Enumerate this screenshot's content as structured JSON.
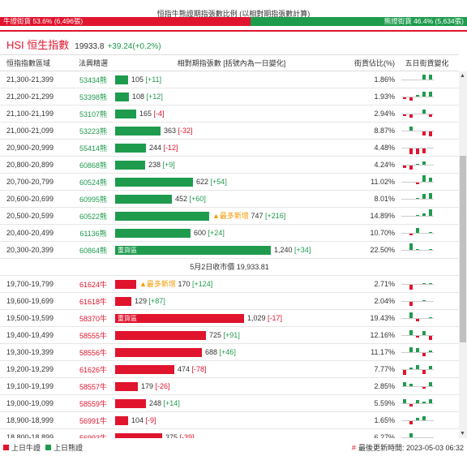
{
  "header": {
    "title": "恒指牛熊證期指張數比例 (以相對期指張數計算)",
    "bull_label": "牛證街貨 53.6% (6,496張)",
    "bear_label": "熊證街貨 46.4% (5,634張)",
    "bull_ratio": 53.6
  },
  "hsi": {
    "title": "HSI 恒生指數",
    "value": "19933.8",
    "change": "+39.24(+0.2%)"
  },
  "columns": {
    "range": "恒指指數區域",
    "code": "法興精選",
    "bar": "相對期指張數 [括號內為一日變化]",
    "pct": "街貨佔比(%)",
    "five": "五日街貨變化"
  },
  "close_line": "5月2日收市價 19,933.81",
  "max_contracts": 1240,
  "rows": [
    {
      "range": "21,300-21,399",
      "code": "53434熊",
      "side": "bear",
      "value": 105,
      "value_text": "105",
      "change": "[+11]",
      "tag": "",
      "pct": "1.86%",
      "five": [
        0,
        0,
        0,
        6,
        6
      ]
    },
    {
      "range": "21,200-21,299",
      "code": "53398熊",
      "side": "bear",
      "value": 108,
      "value_text": "108",
      "change": "[+12]",
      "tag": "",
      "pct": "1.93%",
      "five": [
        -2,
        -4,
        2,
        6,
        6
      ]
    },
    {
      "range": "21,100-21,199",
      "code": "53107熊",
      "side": "bear",
      "value": 165,
      "value_text": "165",
      "change": "[-4]",
      "tag": "",
      "pct": "2.94%",
      "five": [
        -2,
        -4,
        0,
        5,
        -3
      ]
    },
    {
      "range": "21,000-21,099",
      "code": "53223熊",
      "side": "bear",
      "value": 363,
      "value_text": "363",
      "change": "[-32]",
      "tag": "",
      "pct": "8.87%",
      "five": [
        0,
        5,
        0,
        -5,
        -6
      ]
    },
    {
      "range": "20,900-20,999",
      "code": "55414熊",
      "side": "bear",
      "value": 244,
      "value_text": "244",
      "change": "[-12]",
      "tag": "",
      "pct": "4.48%",
      "five": [
        0,
        -7,
        -7,
        -6,
        0
      ]
    },
    {
      "range": "20,800-20,899",
      "code": "60868熊",
      "side": "bear",
      "value": 238,
      "value_text": "238",
      "change": "[+9]",
      "tag": "",
      "pct": "4.24%",
      "five": [
        -3,
        -5,
        1,
        4,
        0
      ]
    },
    {
      "range": "20,700-20,799",
      "code": "60524熊",
      "side": "bear",
      "value": 622,
      "value_text": "622",
      "change": "[+54]",
      "tag": "",
      "pct": "11.02%",
      "five": [
        0,
        0,
        -2,
        8,
        5
      ]
    },
    {
      "range": "20,600-20,699",
      "code": "60995熊",
      "side": "bear",
      "value": 452,
      "value_text": "452",
      "change": "[+60]",
      "tag": "",
      "pct": "8.01%",
      "five": [
        0,
        0,
        1,
        6,
        7
      ]
    },
    {
      "range": "20,500-20,599",
      "code": "60522熊",
      "side": "bear",
      "value": 747,
      "value_text": "747",
      "change": "[+216]",
      "tag": "▲最多新增",
      "pct": "14.89%",
      "five": [
        0,
        0,
        1,
        3,
        8
      ]
    },
    {
      "range": "20,400-20,499",
      "code": "61136熊",
      "side": "bear",
      "value": 600,
      "value_text": "600",
      "change": "[+24]",
      "tag": "",
      "pct": "10.70%",
      "five": [
        0,
        -2,
        6,
        0,
        1
      ]
    },
    {
      "range": "20,300-20,399",
      "code": "60864熊",
      "side": "bear",
      "value": 1240,
      "value_text": "1,240",
      "change": "[+34]",
      "tag": "重貨區",
      "pct": "22.50%",
      "five": [
        0,
        8,
        1,
        0,
        1
      ]
    },
    {
      "range": "19,700-19,799",
      "code": "61624牛",
      "side": "bull",
      "value": 170,
      "value_text": "170",
      "change": "[+124]",
      "tag": "▲最多新增",
      "pct": "2.71%",
      "five": [
        0,
        -6,
        0,
        1,
        1
      ]
    },
    {
      "range": "19,600-19,699",
      "code": "61618牛",
      "side": "bull",
      "value": 129,
      "value_text": "129",
      "change": "[+87]",
      "tag": "",
      "pct": "2.04%",
      "five": [
        0,
        -5,
        0,
        1,
        0
      ]
    },
    {
      "range": "19,500-19,599",
      "code": "58370牛",
      "side": "bull",
      "value": 1029,
      "value_text": "1,029",
      "change": "[-17]",
      "tag": "重貨區",
      "pct": "19.43%",
      "five": [
        0,
        7,
        -3,
        0,
        1
      ]
    },
    {
      "range": "19,400-19,499",
      "code": "58555牛",
      "side": "bull",
      "value": 725,
      "value_text": "725",
      "change": "[+91]",
      "tag": "",
      "pct": "12.16%",
      "five": [
        0,
        6,
        -2,
        5,
        -5
      ]
    },
    {
      "range": "19,300-19,399",
      "code": "58556牛",
      "side": "bull",
      "value": 688,
      "value_text": "688",
      "change": "[+46]",
      "tag": "",
      "pct": "11.17%",
      "five": [
        0,
        6,
        5,
        -4,
        2
      ]
    },
    {
      "range": "19,200-19,299",
      "code": "61626牛",
      "side": "bull",
      "value": 474,
      "value_text": "474",
      "change": "[-78]",
      "tag": "",
      "pct": "7.77%",
      "five": [
        -6,
        2,
        5,
        -5,
        4
      ]
    },
    {
      "range": "19,100-19,199",
      "code": "58557牛",
      "side": "bull",
      "value": 179,
      "value_text": "179",
      "change": "[-26]",
      "tag": "",
      "pct": "2.85%",
      "five": [
        5,
        3,
        0,
        -2,
        5
      ]
    },
    {
      "range": "19,000-19,099",
      "code": "58559牛",
      "side": "bull",
      "value": 248,
      "value_text": "248",
      "change": "[+14]",
      "tag": "",
      "pct": "5.59%",
      "five": [
        5,
        -3,
        4,
        2,
        5
      ]
    },
    {
      "range": "18,900-18,999",
      "code": "56991牛",
      "side": "bull",
      "value": 104,
      "value_text": "104",
      "change": "[-9]",
      "tag": "",
      "pct": "1.65%",
      "five": [
        0,
        -4,
        3,
        5,
        0
      ]
    },
    {
      "range": "18,800-18,899",
      "code": "56993牛",
      "side": "bull",
      "value": 375,
      "value_text": "375",
      "change": "[-39]",
      "tag": "",
      "pct": "6.27%",
      "five": [
        0,
        5,
        0,
        -4,
        0
      ]
    }
  ],
  "legend": {
    "bull": "上日牛證",
    "bear": "上日熊證"
  },
  "update_time": "最後更新時間: 2023-05-03 06:32",
  "colors": {
    "bull": "#e0142d",
    "bear": "#1f9b4e",
    "hot": "#f59a00"
  }
}
